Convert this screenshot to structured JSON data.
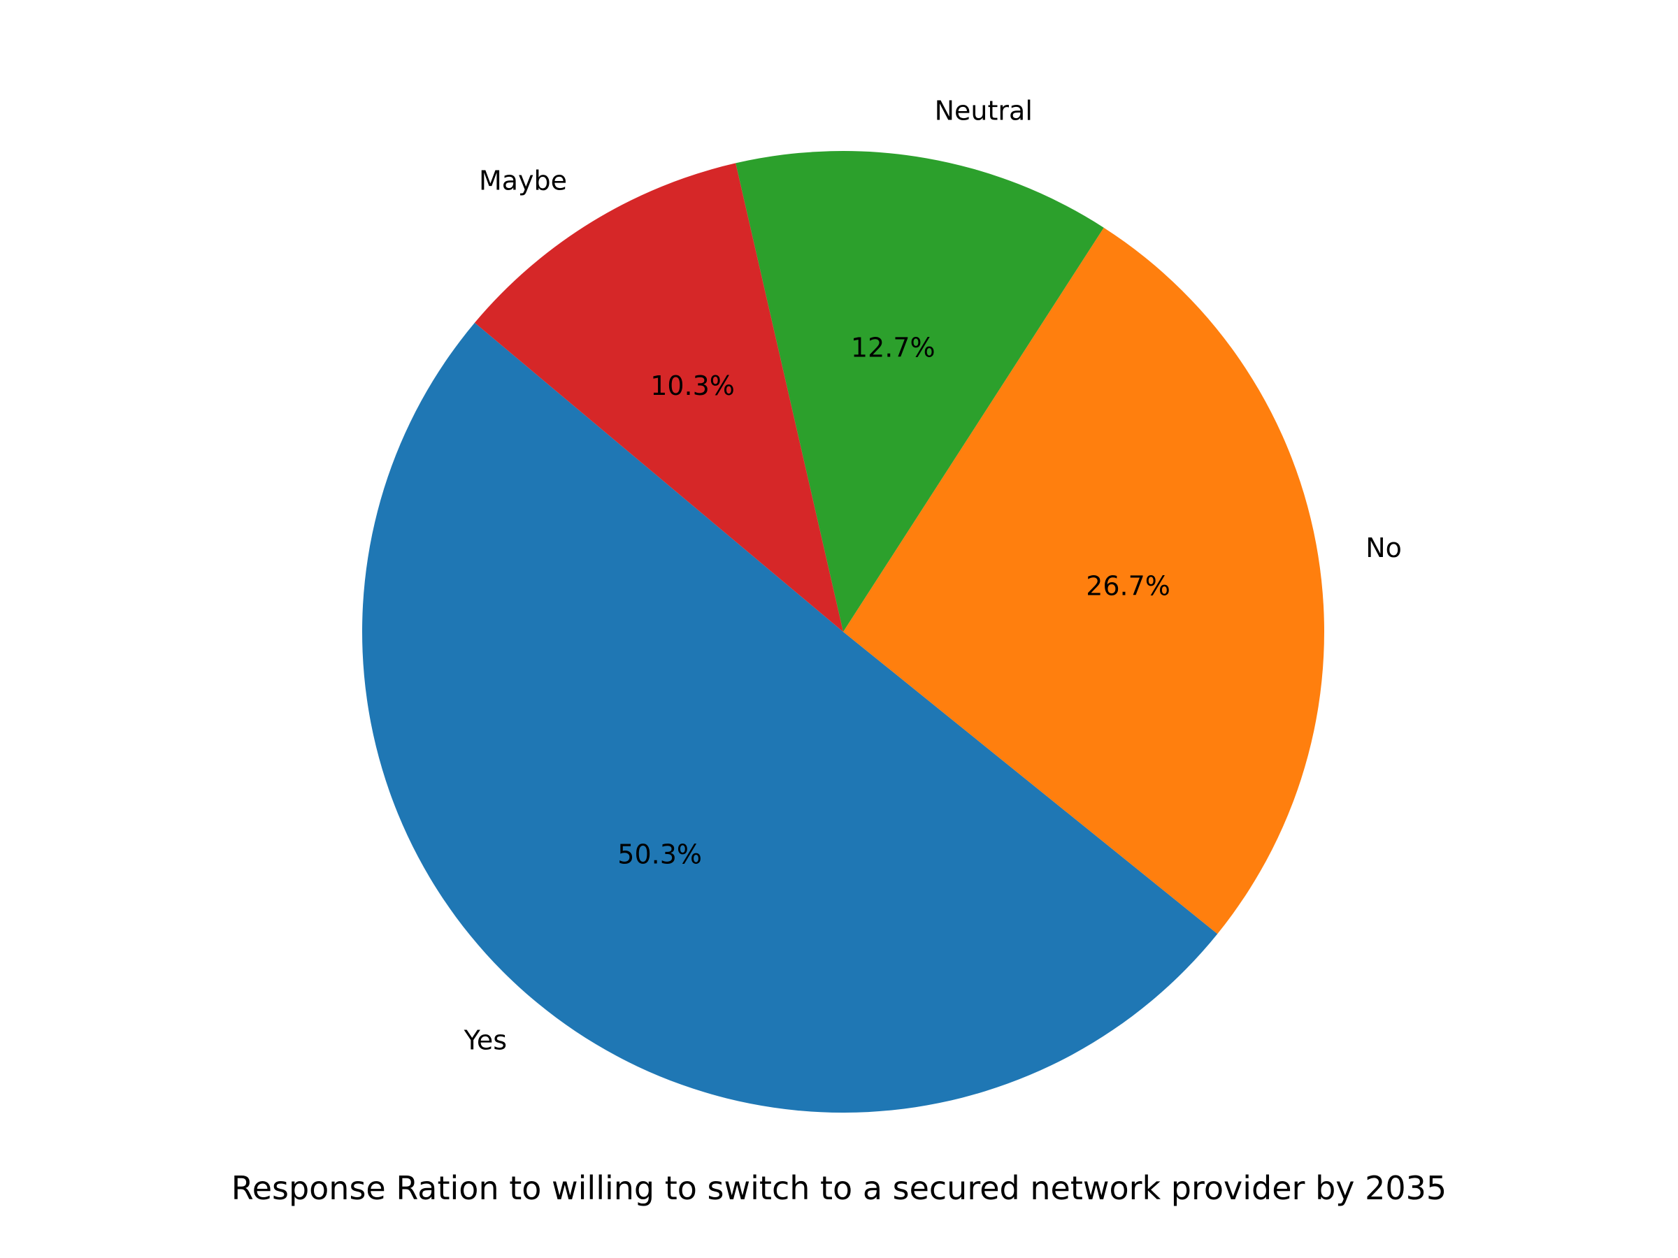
{
  "chart_data": {
    "type": "pie",
    "title": "Response Ration to willing to switch to a secured network provider by 2035",
    "categories": [
      "Yes",
      "No",
      "Neutral",
      "Maybe"
    ],
    "values": [
      50.3,
      26.7,
      12.7,
      10.3
    ],
    "percent_labels": [
      "50.3%",
      "26.7%",
      "12.7%",
      "10.3%"
    ],
    "colors": [
      "#1f77b4",
      "#ff7f0e",
      "#2ca02c",
      "#d62728"
    ],
    "start_angle_deg": 140,
    "direction": "counterclockwise",
    "legend": "none"
  }
}
